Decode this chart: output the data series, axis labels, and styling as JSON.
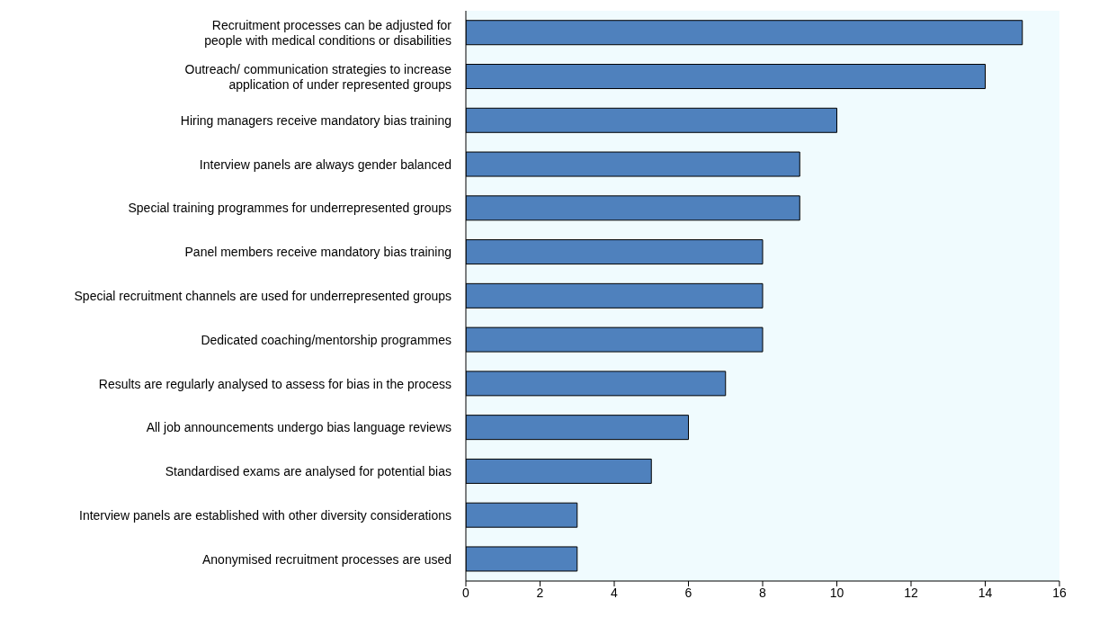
{
  "chart_data": {
    "type": "bar",
    "orientation": "horizontal",
    "categories": [
      "Recruitment processes can be adjusted for people with medical conditions or disabilities",
      "Outreach/ communication strategies to increase application of under represented groups",
      "Hiring managers receive mandatory bias training",
      "Interview panels are always gender balanced",
      "Special training programmes for underrepresented groups",
      "Panel members receive mandatory bias training",
      "Special recruitment channels are used for underrepresented groups",
      "Dedicated coaching/mentorship programmes",
      "Results are regularly analysed to assess for bias in the process",
      "All job announcements undergo bias language reviews",
      "Standardised exams are analysed for potential bias",
      "Interview panels are established with other diversity considerations",
      "Anonymised recruitment processes are used"
    ],
    "values": [
      15,
      14,
      10,
      9,
      9,
      8,
      8,
      8,
      7,
      6,
      5,
      3,
      3
    ],
    "color": "#4f81bd",
    "xlim": [
      0,
      16
    ],
    "xticks": [
      0,
      2,
      4,
      6,
      8,
      10,
      12,
      14,
      16
    ],
    "grid": false
  }
}
